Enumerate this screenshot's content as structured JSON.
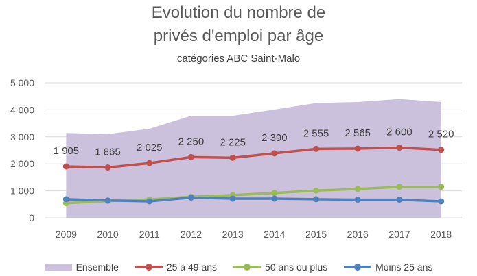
{
  "chart_data": {
    "type": "line",
    "title_lines": [
      "Evolution du nombre de",
      "privés d'emploi par âge"
    ],
    "subtitle": "catégories ABC Saint-Malo",
    "x": [
      "2009",
      "2010",
      "2011",
      "2012",
      "2013",
      "2014",
      "2015",
      "2016",
      "2017",
      "2018"
    ],
    "ylim": [
      0,
      5000
    ],
    "yticks": [
      0,
      1000,
      2000,
      3000,
      4000,
      5000
    ],
    "ytick_labels": [
      "0",
      "1 000",
      "2 000",
      "3 000",
      "4 000",
      "5 000"
    ],
    "grid": true,
    "legend_position": "bottom",
    "series": [
      {
        "name": "Ensemble",
        "kind": "area",
        "color": "#cbc1dc",
        "values": [
          3140,
          3100,
          3300,
          3780,
          3780,
          4010,
          4250,
          4290,
          4400,
          4290
        ]
      },
      {
        "name": "25 à 49 ans",
        "kind": "line",
        "color": "#c0504d",
        "values": [
          1905,
          1865,
          2025,
          2250,
          2225,
          2390,
          2555,
          2565,
          2600,
          2520
        ],
        "data_labels": [
          "1 905",
          "1 865",
          "2 025",
          "2 250",
          "2 225",
          "2 390",
          "2 555",
          "2 565",
          "2 600",
          "2 520"
        ]
      },
      {
        "name": "50 ans ou plus",
        "kind": "line",
        "color": "#9bbb59",
        "values": [
          540,
          620,
          680,
          780,
          840,
          920,
          1010,
          1070,
          1150,
          1150
        ]
      },
      {
        "name": "Moins 25 ans",
        "kind": "line",
        "color": "#4f81bd",
        "values": [
          690,
          640,
          610,
          750,
          710,
          710,
          690,
          670,
          670,
          610
        ]
      }
    ]
  }
}
